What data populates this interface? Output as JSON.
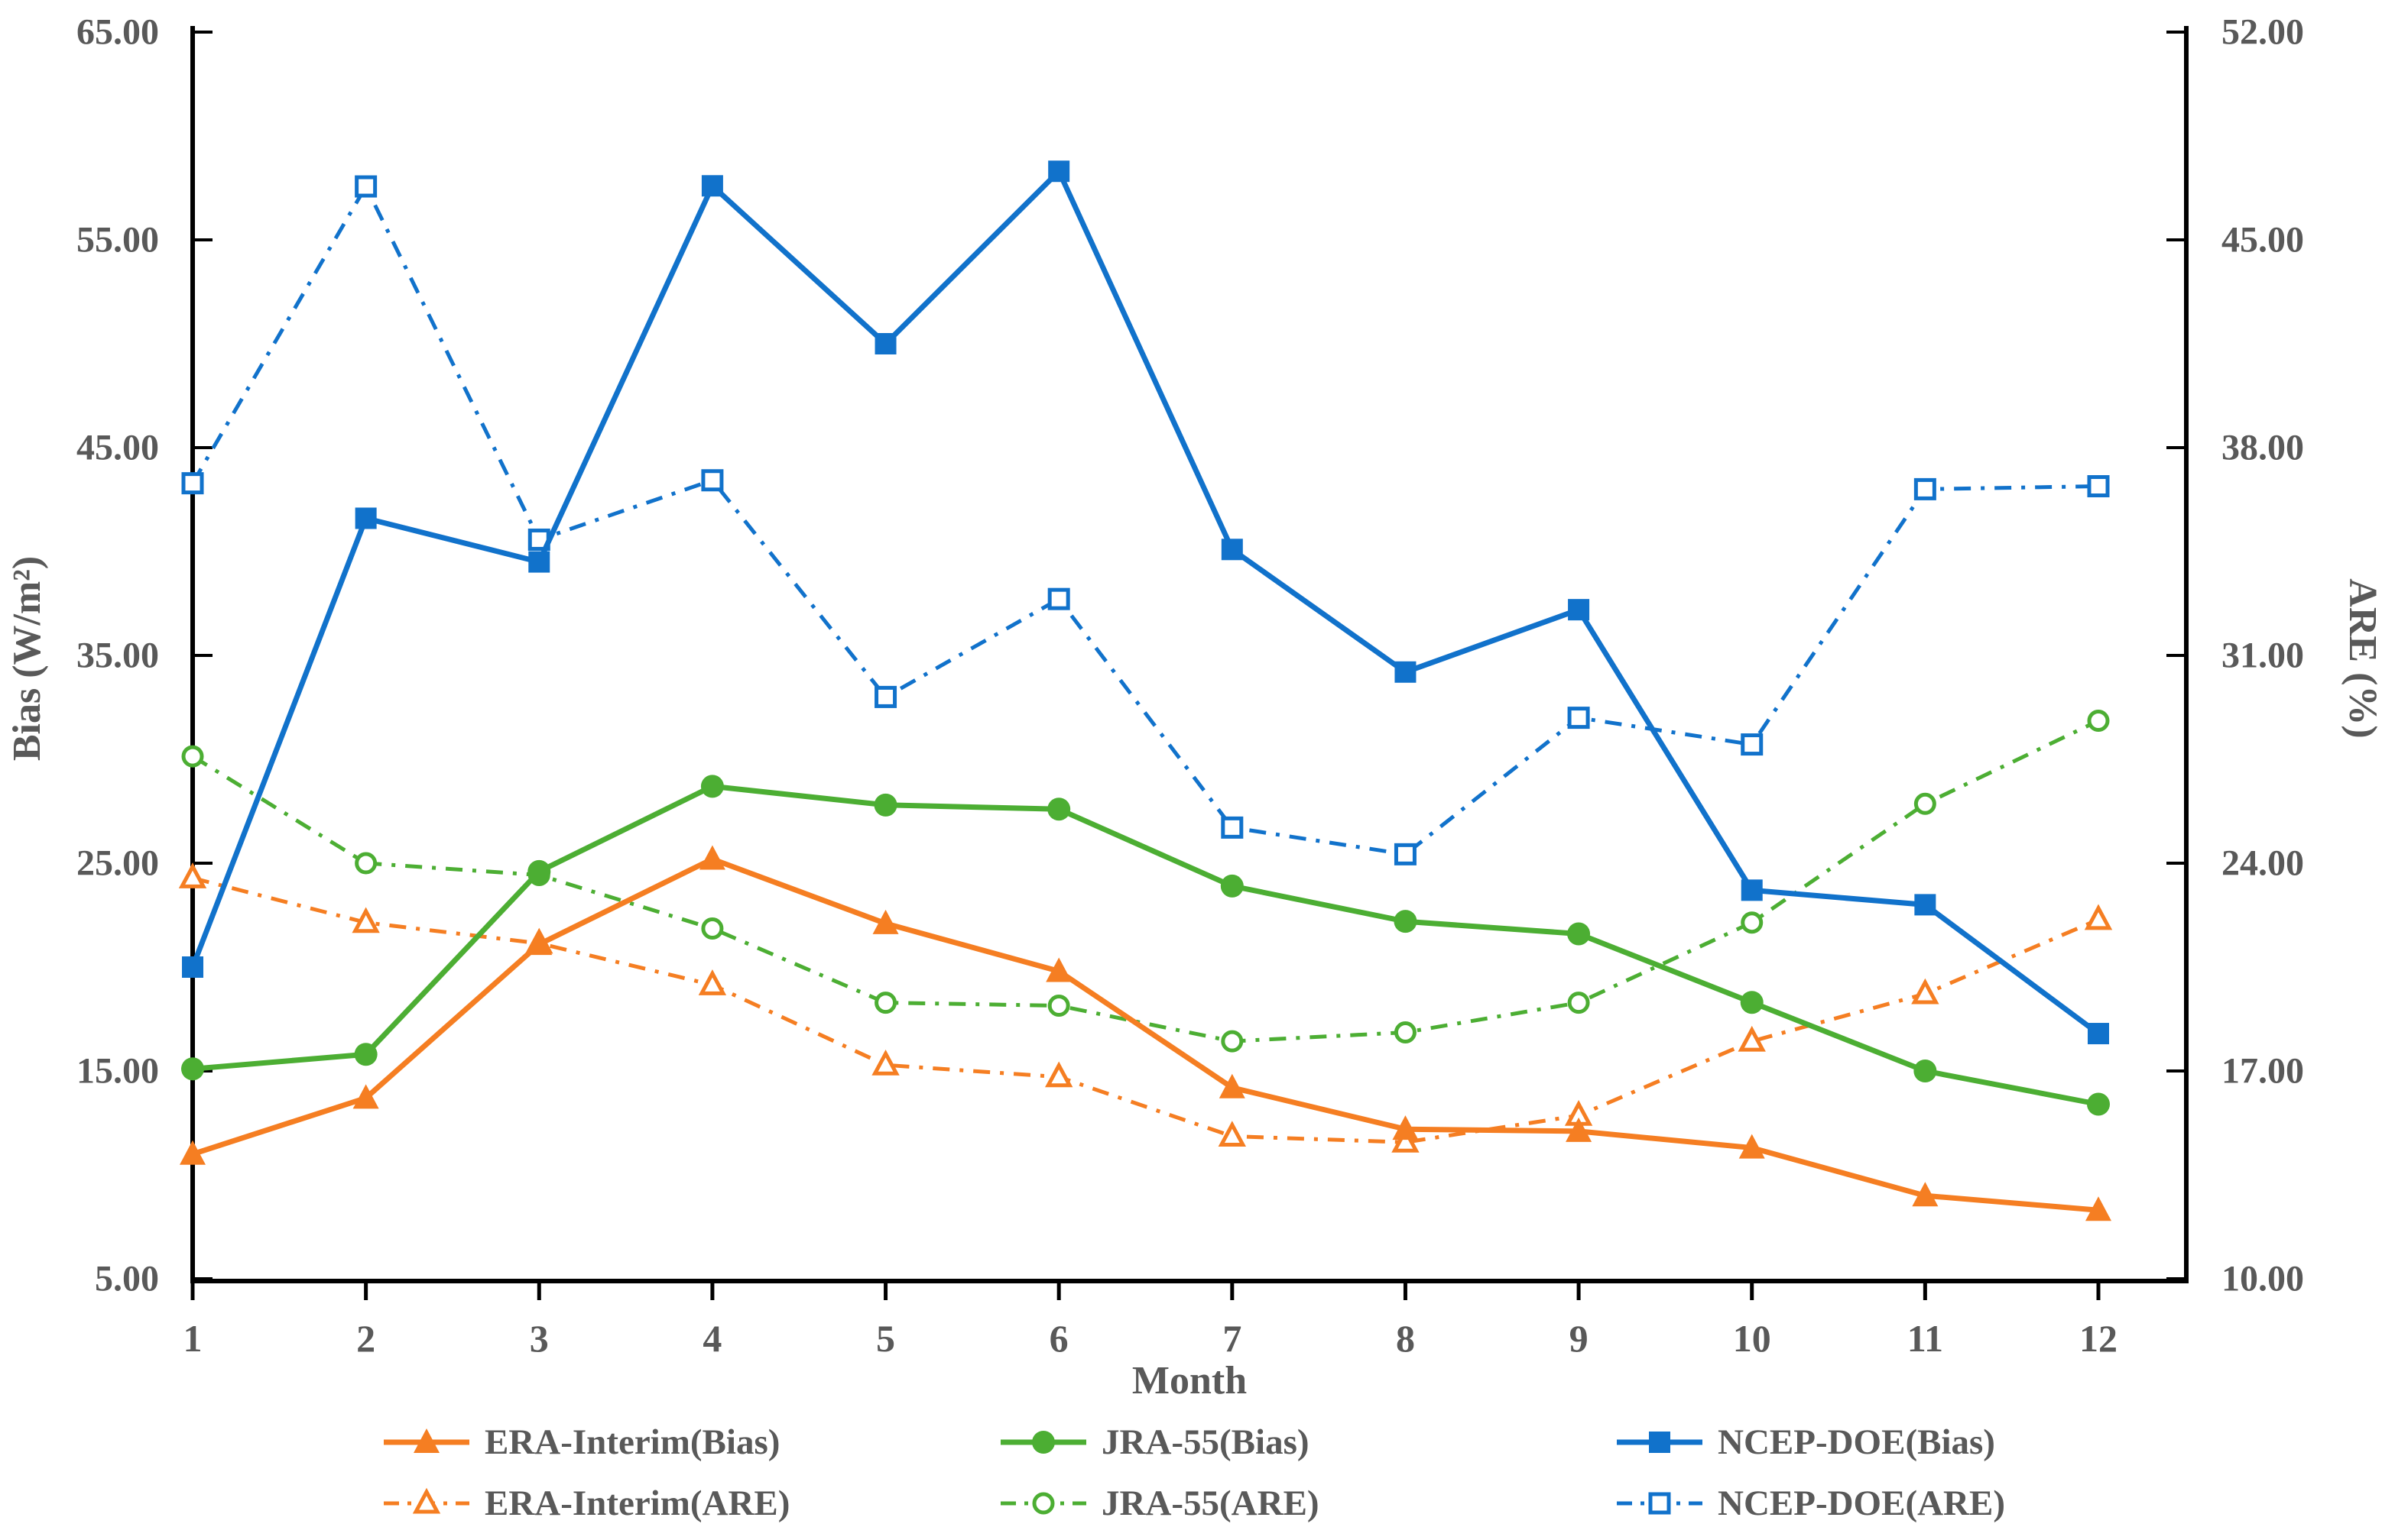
{
  "figure": {
    "background_color": "#ffffff",
    "text_color": "#595959",
    "axis_line_color": "#000000"
  },
  "chart_data": {
    "type": "line",
    "title": "",
    "grid": false,
    "legend_position": "bottom",
    "x_axis": {
      "title": "Month",
      "categories": [
        "1",
        "2",
        "3",
        "4",
        "5",
        "6",
        "7",
        "8",
        "9",
        "10",
        "11",
        "12"
      ]
    },
    "left_axis": {
      "title": "Bias (W/m²)",
      "min": 5,
      "max": 65,
      "step": 10,
      "tick_labels": [
        "65.00",
        "55.00",
        "45.00",
        "35.00",
        "25.00",
        "15.00",
        "5.00"
      ]
    },
    "right_axis": {
      "title": "ARE (%)",
      "min": 10,
      "max": 52,
      "step": 7,
      "tick_labels": [
        "52.00",
        "45.00",
        "38.00",
        "31.00",
        "24.00",
        "17.00",
        "10.00"
      ]
    },
    "series": [
      {
        "name": "ERA-Interim(Bias)",
        "axis": "left",
        "style": "solid",
        "marker": "triangle",
        "color": "#F57E22",
        "values": [
          11.0,
          13.7,
          21.1,
          25.2,
          22.1,
          19.8,
          14.2,
          12.2,
          12.1,
          11.3,
          9.0,
          8.3
        ]
      },
      {
        "name": "JRA-55(Bias)",
        "axis": "left",
        "style": "solid",
        "marker": "circle",
        "color": "#4CAE33",
        "values": [
          15.1,
          15.8,
          24.6,
          28.7,
          27.8,
          27.6,
          23.9,
          22.2,
          21.6,
          18.3,
          15.0,
          13.4
        ]
      },
      {
        "name": "NCEP-DOE(Bias)",
        "axis": "left",
        "style": "solid",
        "marker": "square",
        "color": "#1172CB",
        "values": [
          20.0,
          41.6,
          39.5,
          57.6,
          50.0,
          58.3,
          40.1,
          34.2,
          37.2,
          23.7,
          23.0,
          16.8
        ]
      },
      {
        "name": "ERA-Interim(ARE)",
        "axis": "right",
        "style": "dashdot",
        "marker": "triangle-open",
        "color": "#F57E22",
        "values": [
          23.5,
          22.0,
          21.3,
          19.9,
          17.2,
          16.8,
          14.8,
          14.6,
          15.5,
          18.0,
          19.6,
          22.1
        ]
      },
      {
        "name": "JRA-55(ARE)",
        "axis": "right",
        "style": "dashdot",
        "marker": "circle-open",
        "color": "#4CAE33",
        "values": [
          27.6,
          24.0,
          23.6,
          21.8,
          19.3,
          19.2,
          18.0,
          18.3,
          19.3,
          22.0,
          26.0,
          28.8
        ]
      },
      {
        "name": "NCEP-DOE(ARE)",
        "axis": "right",
        "style": "dashdot",
        "marker": "square-open",
        "color": "#1172CB",
        "values": [
          36.8,
          46.8,
          34.9,
          36.9,
          29.6,
          32.9,
          25.2,
          24.3,
          28.9,
          28.0,
          36.6,
          36.7
        ]
      }
    ]
  }
}
